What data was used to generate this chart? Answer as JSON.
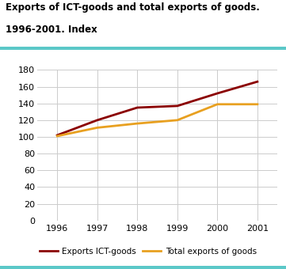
{
  "title_line1": "Exports of ICT-goods and total exports of goods.",
  "title_line2": "1996-2001. Index",
  "years": [
    1996,
    1997,
    1998,
    1999,
    2000,
    2001
  ],
  "ict_goods": [
    102,
    120,
    135,
    137,
    152,
    166
  ],
  "total_goods": [
    101,
    111,
    116,
    120,
    139,
    139
  ],
  "ict_color": "#8B0000",
  "total_color": "#E8A020",
  "ylim": [
    0,
    180
  ],
  "yticks": [
    0,
    20,
    40,
    60,
    80,
    100,
    120,
    140,
    160,
    180
  ],
  "legend_ict": "Exports ICT-goods",
  "legend_total": "Total exports of goods",
  "title_color": "#000000",
  "teal_color": "#5BC8C8",
  "bg_color": "#ffffff",
  "grid_color": "#cccccc",
  "title_fontsize": 8.5,
  "legend_fontsize": 7.5,
  "tick_fontsize": 8
}
